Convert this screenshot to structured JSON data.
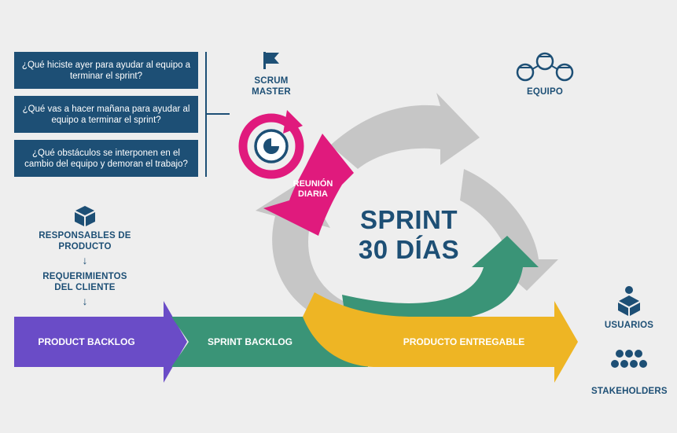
{
  "questions": [
    "¿Qué hiciste ayer para ayudar al equipo a terminar el sprint?",
    "¿Qué vas a hacer mañana para ayudar al equipo a terminar el sprint?",
    "¿Qué obstáculos se interponen en el cambio del equipo y demoran el trabajo?"
  ],
  "roles": {
    "scrum_master": "SCRUM MASTER",
    "equipo": "EQUIPO",
    "responsables": "RESPONSABLES DE PRODUCTO",
    "requerimientos": "REQUERIMIENTOS DEL CLIENTE",
    "usuarios": "USUARIOS",
    "stakeholders": "STAKEHOLDERS"
  },
  "cycle": {
    "meeting": "REUNIÓN DIARIA",
    "sprint_line1": "SPRINT",
    "sprint_line2": "30 DÍAS"
  },
  "flow": {
    "product_backlog": "PRODUCT BACKLOG",
    "sprint_backlog": "SPRINT BACKLOG",
    "deliverable": "PRODUCTO ENTREGABLE"
  },
  "symbols": {
    "arrow_down": "↓"
  },
  "colors": {
    "navy": "#1d4f75",
    "purple": "#6a4cc7",
    "green": "#3a9477",
    "yellow": "#eeb524",
    "magenta": "#e01a7d",
    "gray": "#c6c6c6",
    "background": "#eeeeee"
  }
}
